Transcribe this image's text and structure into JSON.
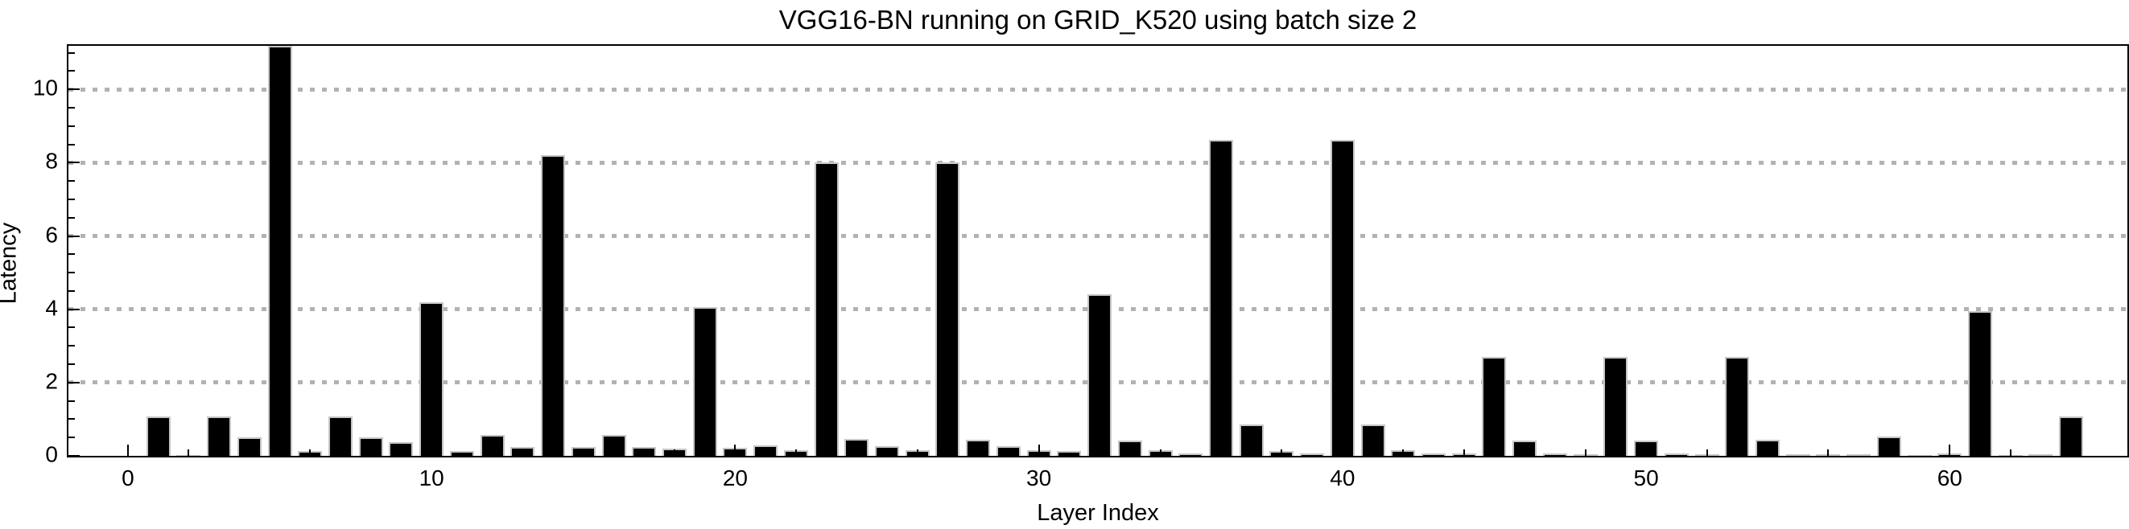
{
  "chart_data": {
    "type": "bar",
    "title": "VGG16-BN running on GRID_K520 using batch size 2",
    "xlabel": "Layer Index",
    "ylabel": "Latency",
    "categories": [
      0,
      1,
      2,
      3,
      4,
      5,
      6,
      7,
      8,
      9,
      10,
      11,
      12,
      13,
      14,
      15,
      16,
      17,
      18,
      19,
      20,
      21,
      22,
      23,
      24,
      25,
      26,
      27,
      28,
      29,
      30,
      31,
      32,
      33,
      34,
      35,
      36,
      37,
      38,
      39,
      40,
      41,
      42,
      43,
      44,
      45,
      46,
      47,
      48,
      49,
      50,
      51,
      52,
      53,
      54,
      55,
      56,
      57,
      58,
      59,
      60,
      61,
      62,
      63,
      64
    ],
    "values": [
      0,
      1.08,
      0.03,
      1.08,
      0.5,
      11.19,
      0.14,
      1.08,
      0.5,
      0.38,
      4.18,
      0.13,
      0.56,
      0.25,
      8.2,
      0.24,
      0.56,
      0.25,
      0.2,
      4.05,
      0.22,
      0.28,
      0.15,
      8.0,
      0.45,
      0.27,
      0.15,
      8.0,
      0.44,
      0.27,
      0.15,
      0.13,
      4.4,
      0.42,
      0.15,
      0.07,
      8.63,
      0.86,
      0.14,
      0.07,
      8.63,
      0.86,
      0.15,
      0.07,
      0.06,
      2.7,
      0.42,
      0.06,
      0.04,
      2.7,
      0.42,
      0.06,
      0.05,
      2.7,
      0.44,
      0.05,
      0.04,
      0.04,
      0.53,
      0.03,
      0.06,
      3.96,
      0.03,
      0.05,
      1.08
    ],
    "xlim": [
      -1.96,
      65.85
    ],
    "ylim": [
      0,
      11.19
    ],
    "x_major_ticks": [
      0,
      10,
      20,
      30,
      40,
      50,
      60
    ],
    "x_major_tick_labels": [
      "0",
      "10",
      "20",
      "30",
      "40",
      "50",
      "60"
    ],
    "x_minor_tick_step": 2,
    "y_major_ticks": [
      0,
      2,
      4,
      6,
      8,
      10
    ],
    "y_major_tick_labels": [
      "0",
      "2",
      "4",
      "6",
      "8",
      "10"
    ],
    "y_minor_tick_step": 0.5,
    "grid": "horizontal dotted lines at y major ticks (2,4,6,8,10)",
    "legend": "none",
    "bar_color": "#000000",
    "bar_edge_color": "#c6c6c6",
    "grid_color": "#b2b2b2",
    "frame_color": "#000000"
  }
}
